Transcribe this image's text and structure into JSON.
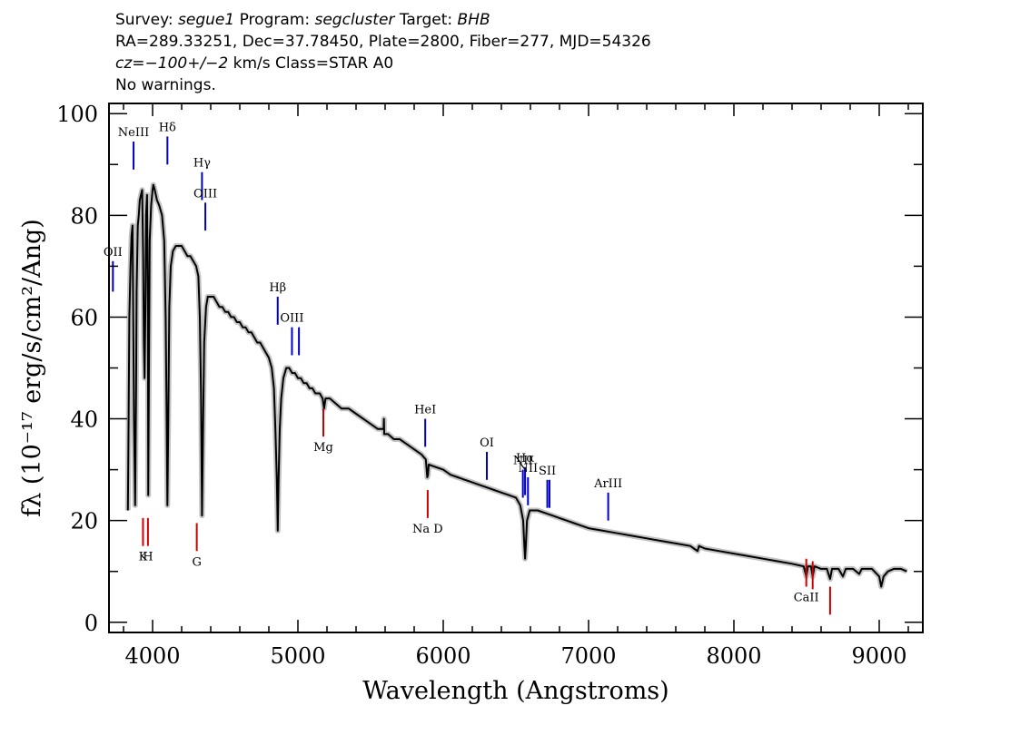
{
  "header": {
    "survey_label": "Survey:",
    "survey": "segue1",
    "program_label": "Program:",
    "program": "segcluster",
    "target_label": "Target:",
    "target": "BHB",
    "line2": "RA=289.33251, Dec=37.78450, Plate=2800, Fiber=277, MJD=54326",
    "cz": "cz=−100+/−2",
    "cz_rest": " km/s Class=STAR A0",
    "line4": "No warnings."
  },
  "colors": {
    "emission": "#0000cc",
    "absorption": "#cc0000",
    "spectrum": "#000000",
    "noise": "#bbbbbb"
  },
  "chart_data": {
    "type": "line",
    "xlabel": "Wavelength (Angstroms)",
    "ylabel": "fλ (10⁻¹⁷ erg/s/cm²/Ang)",
    "xlim": [
      3700,
      9300
    ],
    "ylim": [
      -2,
      102
    ],
    "x_ticks": [
      4000,
      5000,
      6000,
      7000,
      8000,
      9000
    ],
    "y_ticks": [
      0,
      20,
      40,
      60,
      80,
      100
    ],
    "x_tick_labels": [
      "4000",
      "5000",
      "6000",
      "7000",
      "8000",
      "9000"
    ],
    "y_tick_labels": [
      "0",
      "20",
      "40",
      "60",
      "80",
      "100"
    ],
    "series": [
      {
        "points": [
          [
            3830,
            22
          ],
          [
            3835,
            40
          ],
          [
            3840,
            60
          ],
          [
            3848,
            70
          ],
          [
            3855,
            76
          ],
          [
            3862,
            78
          ],
          [
            3868,
            55
          ],
          [
            3872,
            40
          ],
          [
            3880,
            23
          ],
          [
            3886,
            45
          ],
          [
            3890,
            65
          ],
          [
            3898,
            78
          ],
          [
            3905,
            80
          ],
          [
            3912,
            83
          ],
          [
            3920,
            84
          ],
          [
            3928,
            85
          ],
          [
            3935,
            72
          ],
          [
            3940,
            55
          ],
          [
            3945,
            48
          ],
          [
            3950,
            60
          ],
          [
            3955,
            80
          ],
          [
            3962,
            84
          ],
          [
            3968,
            60
          ],
          [
            3970,
            25
          ],
          [
            3975,
            50
          ],
          [
            3980,
            75
          ],
          [
            3990,
            82
          ],
          [
            4000,
            85
          ],
          [
            4005,
            86
          ],
          [
            4015,
            85
          ],
          [
            4030,
            83
          ],
          [
            4045,
            82
          ],
          [
            4065,
            80
          ],
          [
            4080,
            75
          ],
          [
            4090,
            60
          ],
          [
            4097,
            40
          ],
          [
            4102,
            23
          ],
          [
            4108,
            40
          ],
          [
            4115,
            62
          ],
          [
            4125,
            70
          ],
          [
            4140,
            73
          ],
          [
            4160,
            74
          ],
          [
            4180,
            74
          ],
          [
            4200,
            74
          ],
          [
            4220,
            73
          ],
          [
            4240,
            72
          ],
          [
            4260,
            72
          ],
          [
            4280,
            71
          ],
          [
            4300,
            70
          ],
          [
            4315,
            68
          ],
          [
            4325,
            60
          ],
          [
            4333,
            45
          ],
          [
            4340,
            21
          ],
          [
            4348,
            40
          ],
          [
            4355,
            55
          ],
          [
            4368,
            62
          ],
          [
            4380,
            64
          ],
          [
            4400,
            64
          ],
          [
            4420,
            64
          ],
          [
            4440,
            63
          ],
          [
            4460,
            62
          ],
          [
            4480,
            62
          ],
          [
            4500,
            61
          ],
          [
            4520,
            61
          ],
          [
            4540,
            60
          ],
          [
            4560,
            60
          ],
          [
            4580,
            59
          ],
          [
            4600,
            59
          ],
          [
            4620,
            58
          ],
          [
            4640,
            58
          ],
          [
            4660,
            57
          ],
          [
            4680,
            57
          ],
          [
            4700,
            56
          ],
          [
            4720,
            55
          ],
          [
            4740,
            55
          ],
          [
            4760,
            54
          ],
          [
            4780,
            53
          ],
          [
            4800,
            52
          ],
          [
            4820,
            50
          ],
          [
            4835,
            46
          ],
          [
            4845,
            38
          ],
          [
            4855,
            28
          ],
          [
            4861,
            18
          ],
          [
            4867,
            28
          ],
          [
            4875,
            38
          ],
          [
            4885,
            44
          ],
          [
            4900,
            48
          ],
          [
            4920,
            50
          ],
          [
            4940,
            50
          ],
          [
            4960,
            49
          ],
          [
            4980,
            49
          ],
          [
            5000,
            48
          ],
          [
            5020,
            48
          ],
          [
            5040,
            47
          ],
          [
            5060,
            47
          ],
          [
            5080,
            46
          ],
          [
            5100,
            46
          ],
          [
            5120,
            45
          ],
          [
            5150,
            45
          ],
          [
            5170,
            44
          ],
          [
            5180,
            42
          ],
          [
            5190,
            44
          ],
          [
            5220,
            44
          ],
          [
            5260,
            43
          ],
          [
            5300,
            42
          ],
          [
            5350,
            42
          ],
          [
            5400,
            41
          ],
          [
            5450,
            40
          ],
          [
            5500,
            39
          ],
          [
            5550,
            38
          ],
          [
            5590,
            38
          ],
          [
            5592,
            40
          ],
          [
            5594,
            37
          ],
          [
            5620,
            37
          ],
          [
            5660,
            36
          ],
          [
            5700,
            36
          ],
          [
            5750,
            35
          ],
          [
            5800,
            34
          ],
          [
            5850,
            33
          ],
          [
            5880,
            32
          ],
          [
            5890,
            28.5
          ],
          [
            5895,
            29
          ],
          [
            5900,
            31
          ],
          [
            5950,
            30.5
          ],
          [
            6000,
            30
          ],
          [
            6050,
            29
          ],
          [
            6100,
            28.5
          ],
          [
            6150,
            28
          ],
          [
            6200,
            27.5
          ],
          [
            6250,
            27
          ],
          [
            6300,
            26.5
          ],
          [
            6350,
            26
          ],
          [
            6400,
            25.5
          ],
          [
            6450,
            25
          ],
          [
            6500,
            24.5
          ],
          [
            6530,
            23
          ],
          [
            6550,
            20
          ],
          [
            6558,
            15
          ],
          [
            6563,
            12.5
          ],
          [
            6568,
            15
          ],
          [
            6576,
            20
          ],
          [
            6595,
            22
          ],
          [
            6650,
            22
          ],
          [
            6700,
            21.5
          ],
          [
            6750,
            21
          ],
          [
            6800,
            20.5
          ],
          [
            6850,
            20
          ],
          [
            6900,
            19.5
          ],
          [
            6950,
            19
          ],
          [
            7000,
            18.5
          ],
          [
            7100,
            18
          ],
          [
            7200,
            17.5
          ],
          [
            7300,
            17
          ],
          [
            7400,
            16.5
          ],
          [
            7500,
            16
          ],
          [
            7600,
            15.5
          ],
          [
            7700,
            15
          ],
          [
            7750,
            14
          ],
          [
            7760,
            15
          ],
          [
            7800,
            14.5
          ],
          [
            7900,
            14
          ],
          [
            8000,
            13.5
          ],
          [
            8100,
            13
          ],
          [
            8200,
            12.5
          ],
          [
            8300,
            12
          ],
          [
            8400,
            11.5
          ],
          [
            8480,
            11
          ],
          [
            8498,
            9
          ],
          [
            8510,
            11
          ],
          [
            8530,
            11
          ],
          [
            8542,
            9
          ],
          [
            8555,
            11
          ],
          [
            8600,
            10.5
          ],
          [
            8620,
            10.5
          ],
          [
            8640,
            10.5
          ],
          [
            8662,
            8.5
          ],
          [
            8675,
            10.5
          ],
          [
            8720,
            10.5
          ],
          [
            8750,
            9
          ],
          [
            8770,
            10.5
          ],
          [
            8820,
            10.5
          ],
          [
            8862,
            9.5
          ],
          [
            8880,
            10.5
          ],
          [
            8950,
            10.5
          ],
          [
            9000,
            9
          ],
          [
            9014,
            7
          ],
          [
            9030,
            9
          ],
          [
            9060,
            10
          ],
          [
            9100,
            10.5
          ],
          [
            9150,
            10.5
          ],
          [
            9190,
            10
          ]
        ]
      }
    ],
    "emission_lines": [
      {
        "name": "OII",
        "x": 3727,
        "y0": 65,
        "y1": 71,
        "label": "OII"
      },
      {
        "name": "NeIII",
        "x": 3869,
        "y0": 89,
        "y1": 94.5,
        "label": "NeIII"
      },
      {
        "name": "Hδ",
        "x": 4102,
        "y0": 90,
        "y1": 95.5,
        "label": "Hδ"
      },
      {
        "name": "Hγ",
        "x": 4340,
        "y0": 83,
        "y1": 88.5,
        "label": "Hγ"
      },
      {
        "name": "OIII",
        "x": 4363,
        "y0": 77,
        "y1": 82.5,
        "label": "OIII"
      },
      {
        "name": "Hβ",
        "x": 4861,
        "y0": 58.5,
        "y1": 64,
        "label": "Hβ"
      },
      {
        "name": "OIII",
        "x": 4959,
        "y0": 52.5,
        "y1": 58,
        "label": "OIII"
      },
      {
        "name": "OIII-b",
        "x": 5007,
        "y0": 52.5,
        "y1": 58,
        "label": ""
      },
      {
        "name": "HeI",
        "x": 5876,
        "y0": 34.5,
        "y1": 40,
        "label": "HeI"
      },
      {
        "name": "OI",
        "x": 6300,
        "y0": 28,
        "y1": 33.5,
        "label": "OI"
      },
      {
        "name": "NII",
        "x": 6548,
        "y0": 24.5,
        "y1": 30,
        "label": "NII"
      },
      {
        "name": "Hα",
        "x": 6563,
        "y0": 25,
        "y1": 30.5,
        "label": "Hα"
      },
      {
        "name": "NII",
        "x": 6583,
        "y0": 23,
        "y1": 28.5,
        "label": "NII"
      },
      {
        "name": "SII",
        "x": 6716,
        "y0": 22.5,
        "y1": 28,
        "label": "SII"
      },
      {
        "name": "SII-b",
        "x": 6731,
        "y0": 22.5,
        "y1": 28,
        "label": ""
      },
      {
        "name": "ArIII",
        "x": 7135,
        "y0": 20,
        "y1": 25.5,
        "label": "ArIII"
      }
    ],
    "absorption_lines": [
      {
        "name": "K",
        "x": 3934,
        "y0": 15,
        "y1": 20.5,
        "label": "K"
      },
      {
        "name": "H",
        "x": 3968,
        "y0": 15,
        "y1": 20.5,
        "label": "H"
      },
      {
        "name": "G",
        "x": 4304,
        "y0": 14,
        "y1": 19.5,
        "label": "G"
      },
      {
        "name": "Mg",
        "x": 5175,
        "y0": 36.5,
        "y1": 42,
        "label": "Mg"
      },
      {
        "name": "Na D",
        "x": 5893,
        "y0": 20.5,
        "y1": 26,
        "label": "Na  D"
      },
      {
        "name": "CaII",
        "x": 8498,
        "y0": 7,
        "y1": 12.5,
        "label": "CaII"
      },
      {
        "name": "CaII-2",
        "x": 8542,
        "y0": 6.5,
        "y1": 12,
        "label": ""
      },
      {
        "name": "CaII-3",
        "x": 8662,
        "y0": 1.5,
        "y1": 7,
        "label": ""
      }
    ]
  }
}
